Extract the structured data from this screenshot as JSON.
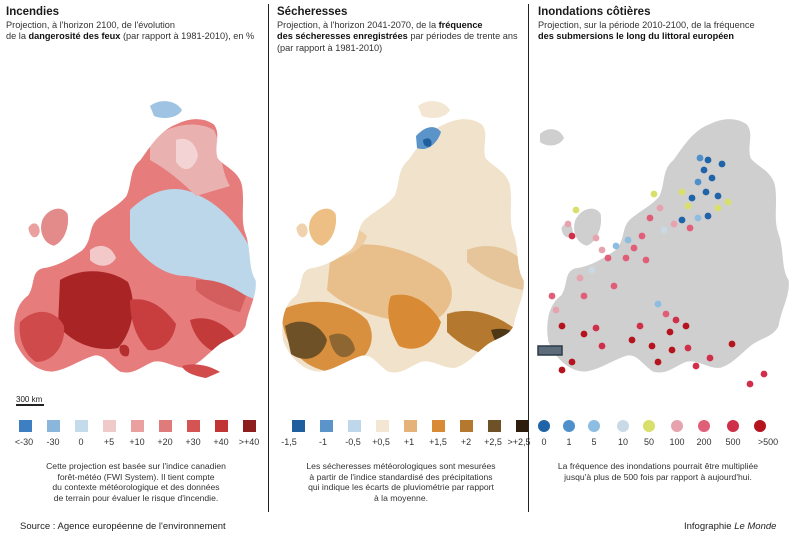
{
  "panels": [
    {
      "title": "Incendies",
      "subtitle_l1": "Projection, à l'horizon 2100, de l'évolution",
      "subtitle_l2_pre": "de la ",
      "subtitle_l2_bold": "dangerosité des feux",
      "subtitle_l2_post": " (par rapport à 1981-2010), en %",
      "legend_labels": [
        "<-30",
        "-30",
        "0",
        "+5",
        "+10",
        "+20",
        "+30",
        "+40",
        ">+40"
      ],
      "legend_colors": [
        "#3d7fc1",
        "#8ab6dc",
        "#c4dbec",
        "#f0c9c9",
        "#eba0a0",
        "#e07b7b",
        "#d45454",
        "#c23535",
        "#8e1d1d"
      ],
      "note": [
        "Cette projection est basée sur l'indice canadien",
        "forêt-météo (FWI System). Il tient compte",
        "du contexte météorologique et des données",
        "de terrain pour évaluer le risque d'incendie."
      ],
      "scale_label": "300 km"
    },
    {
      "title": "Sécheresses",
      "subtitle_l1": "Projection, à l'horizon 2041-2070, de la ",
      "subtitle_l1_bold": "fréquence",
      "subtitle_l2_bold": "des sécheresses enregistrées",
      "subtitle_l2_post": " par périodes de trente ans",
      "subtitle_l3": "(par rapport à 1981-2010)",
      "legend_labels": [
        "-1,5",
        "-1",
        "-0,5",
        "+0,5",
        "+1",
        "+1,5",
        "+2",
        "+2,5",
        ">+2,5"
      ],
      "legend_colors": [
        "#1f5f9e",
        "#5a94c9",
        "#bfd7ea",
        "#f3e6d2",
        "#e5b27a",
        "#d98a34",
        "#b4782f",
        "#6e5126",
        "#2e1c0c"
      ],
      "note": [
        "Les sécheresses météorologiques sont mesurées",
        "à partir de l'indice standardisé des précipitations",
        "qui indique les écarts de pluviométrie par rapport",
        "à la moyenne."
      ]
    },
    {
      "title": "Inondations côtières",
      "subtitle_l1": "Projection, sur la période 2010-2100, de la fréquence",
      "subtitle_l2_bold": "des submersions le long du littoral européen",
      "legend_labels": [
        "0",
        "1",
        "5",
        "10",
        "50",
        "100",
        "200",
        "500",
        ">500"
      ],
      "legend_colors": [
        "#1f63a8",
        "#4f8fcb",
        "#8ebde2",
        "#c9d9e6",
        "#d8df6a",
        "#e7a3ad",
        "#e05e78",
        "#cf2f48",
        "#b5131d"
      ],
      "note": [
        "La fréquence des inondations pourrait être multipliée",
        "jusqu'à plus de 500 fois par rapport à aujourd'hui."
      ]
    }
  ],
  "footer": {
    "source": "Source : Agence européenne de l'environnement",
    "credit_pre": "Infographie ",
    "credit_italic": "Le Monde"
  }
}
